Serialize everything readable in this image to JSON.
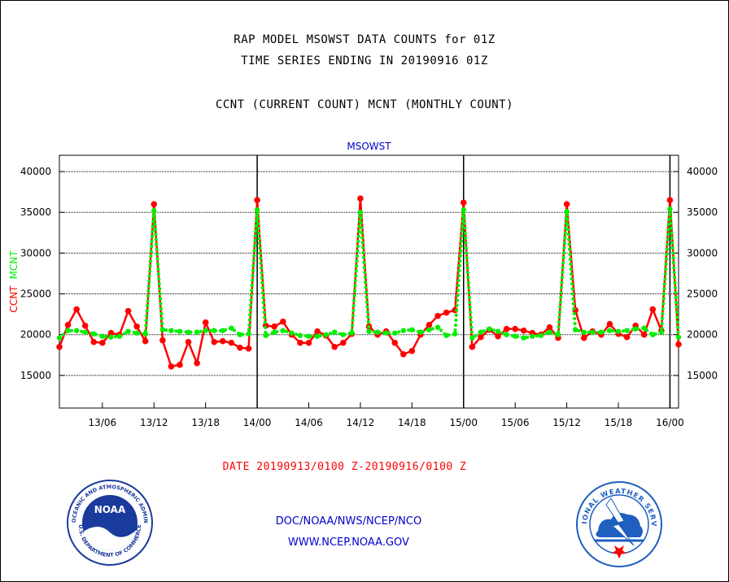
{
  "header": {
    "title_line1": "RAP MODEL MSOWST DATA COUNTS for 01Z",
    "title_line2": "TIME SERIES ENDING IN 20190916 01Z",
    "subtitle": "CCNT (CURRENT COUNT) MCNT (MONTHLY COUNT)"
  },
  "footer": {
    "date_range": "DATE 20190913/0100 Z-20190916/0100 Z",
    "org": "DOC/NOAA/NWS/NCEP/NCO",
    "website": "WWW.NCEP.NOAA.GOV"
  },
  "logos": {
    "noaa_text": "NOAA",
    "noaa_ring_text": "NATIONAL OCEANIC AND ATMOSPHERIC ADMINISTRATION",
    "noaa_ring_bottom": "U.S. DEPARTMENT OF COMMERCE",
    "nws_ring_text": "NATIONAL WEATHER SERVICE"
  },
  "colors": {
    "ccnt": "#ff0000",
    "mcnt": "#00ee00",
    "panel_title": "#0000cc",
    "footer_text": "#0000cc",
    "noaa_blue": "#1a3a9c",
    "nws_blue": "#1f5fbf"
  },
  "chart_data": {
    "type": "line",
    "title": "MSOWST",
    "ylabel_parts": [
      {
        "text": "CCNT",
        "color": "#ff0000"
      },
      {
        "text": "MCNT",
        "color": "#00ee00"
      }
    ],
    "xlim": [
      0,
      72
    ],
    "ylim": [
      11000,
      42000
    ],
    "yticks": [
      15000,
      20000,
      25000,
      30000,
      35000,
      40000
    ],
    "ytick_labels": [
      "15000",
      "20000",
      "25000",
      "30000",
      "35000",
      "40000"
    ],
    "xticks": [
      5,
      11,
      17,
      23,
      29,
      35,
      41,
      47,
      53,
      59,
      65,
      71
    ],
    "xtick_labels": [
      "13/06",
      "13/12",
      "13/18",
      "14/00",
      "14/06",
      "14/12",
      "14/18",
      "15/00",
      "15/06",
      "15/12",
      "15/18",
      "16/00"
    ],
    "day_lines": [
      23,
      47,
      71
    ],
    "grid": "horizontal-dotted",
    "series": [
      {
        "name": "CCNT",
        "color": "#ff0000",
        "style": "solid-markers",
        "values": [
          18500,
          21200,
          23100,
          21100,
          19100,
          19000,
          20200,
          20000,
          22900,
          21000,
          19200,
          36000,
          19300,
          16100,
          16300,
          19100,
          16500,
          21500,
          19100,
          19200,
          19000,
          18400,
          18300,
          36500,
          21100,
          21000,
          21600,
          20000,
          19000,
          19000,
          20400,
          19900,
          18500,
          19000,
          20100,
          36700,
          21000,
          20000,
          20400,
          19000,
          17600,
          18000,
          20000,
          21200,
          22300,
          22700,
          23000,
          36200,
          18500,
          19700,
          20600,
          19800,
          20700,
          20700,
          20500,
          20200,
          20000,
          20900,
          19600,
          36000,
          23000,
          19600,
          20400,
          20000,
          21300,
          20100,
          19700,
          21100,
          20000,
          23100,
          20500,
          36500,
          18800
        ]
      },
      {
        "name": "MCNT",
        "color": "#00ee00",
        "style": "dotted",
        "values": [
          19600,
          20500,
          20500,
          20300,
          20100,
          19800,
          19700,
          19800,
          20400,
          20200,
          20100,
          35200,
          20600,
          20500,
          20400,
          20300,
          20300,
          20500,
          20500,
          20500,
          20800,
          20000,
          20100,
          35300,
          19900,
          20300,
          20500,
          20200,
          19900,
          19800,
          19800,
          20000,
          20300,
          20000,
          20200,
          35000,
          20400,
          20300,
          20200,
          20200,
          20500,
          20600,
          20300,
          20600,
          20900,
          19900,
          20100,
          35300,
          19600,
          20300,
          20700,
          20400,
          20000,
          19800,
          19600,
          19800,
          19900,
          20300,
          20000,
          35100,
          20600,
          20300,
          20300,
          20300,
          20500,
          20400,
          20500,
          20700,
          20800,
          20000,
          20300,
          35400,
          19700
        ]
      }
    ]
  }
}
